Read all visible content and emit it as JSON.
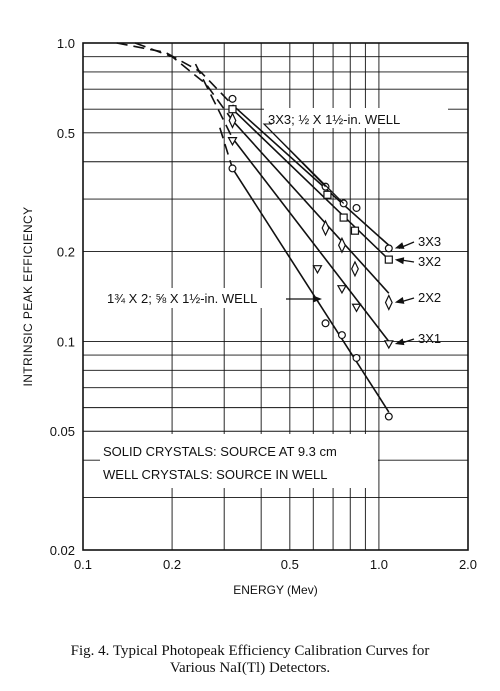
{
  "chart_data": {
    "type": "line",
    "scale": {
      "x": "log",
      "y": "log"
    },
    "xlim": [
      0.1,
      2.0
    ],
    "ylim": [
      0.02,
      1.0
    ],
    "xlabel": "ENERGY (Mev)",
    "ylabel": "INTRINSIC PEAK EFFICIENCY",
    "x_ticks": [
      {
        "value": 0.1,
        "label": "0.1"
      },
      {
        "value": 0.2,
        "label": "0.2"
      },
      {
        "value": 0.5,
        "label": "0.5"
      },
      {
        "value": 1.0,
        "label": "1.0"
      },
      {
        "value": 2.0,
        "label": "2.0"
      }
    ],
    "y_ticks": [
      {
        "value": 1.0,
        "label": "1.0"
      },
      {
        "value": 0.5,
        "label": "0.5"
      },
      {
        "value": 0.2,
        "label": "0.2"
      },
      {
        "value": 0.1,
        "label": "0.1"
      },
      {
        "value": 0.05,
        "label": "0.05"
      },
      {
        "value": 0.02,
        "label": "0.02"
      }
    ],
    "grid": true,
    "series": [
      {
        "name": "3X3",
        "marker": "circle",
        "line": [
          [
            0.32,
            0.62
          ],
          [
            1.08,
            0.21
          ]
        ],
        "dashed": [
          [
            0.13,
            1.0
          ],
          [
            0.19,
            0.93
          ],
          [
            0.25,
            0.8
          ],
          [
            0.32,
            0.62
          ]
        ],
        "points": [
          [
            0.32,
            0.65
          ],
          [
            0.66,
            0.33
          ],
          [
            0.76,
            0.29
          ],
          [
            0.84,
            0.28
          ],
          [
            1.08,
            0.205
          ]
        ]
      },
      {
        "name": "3X2",
        "marker": "square",
        "line": [
          [
            0.32,
            0.6
          ],
          [
            1.08,
            0.188
          ]
        ],
        "dashed": [],
        "points": [
          [
            0.32,
            0.6
          ],
          [
            0.67,
            0.31
          ],
          [
            0.76,
            0.26
          ],
          [
            0.83,
            0.235
          ],
          [
            1.08,
            0.188
          ]
        ]
      },
      {
        "name": "2X2",
        "marker": "diamond",
        "line": [
          [
            0.32,
            0.55
          ],
          [
            1.08,
            0.145
          ]
        ],
        "dashed": [
          [
            0.15,
            1.0
          ],
          [
            0.2,
            0.9
          ],
          [
            0.26,
            0.73
          ],
          [
            0.32,
            0.55
          ]
        ],
        "points": [
          [
            0.32,
            0.55
          ],
          [
            0.66,
            0.24
          ],
          [
            0.75,
            0.21
          ],
          [
            0.83,
            0.175
          ],
          [
            1.08,
            0.135
          ]
        ]
      },
      {
        "name": "3X1",
        "marker": "triangle-down",
        "line": [
          [
            0.32,
            0.48
          ],
          [
            1.08,
            0.1
          ]
        ],
        "dashed": [
          [
            0.24,
            0.85
          ],
          [
            0.32,
            0.48
          ]
        ],
        "points": [
          [
            0.32,
            0.47
          ],
          [
            0.62,
            0.175
          ],
          [
            0.75,
            0.15
          ],
          [
            0.84,
            0.13
          ],
          [
            1.08,
            0.098
          ]
        ]
      },
      {
        "name": "1¾ X 2; ⅝ X 1½-in. WELL",
        "marker": "circle",
        "line": [
          [
            0.32,
            0.38
          ],
          [
            1.08,
            0.058
          ]
        ],
        "dashed": [
          [
            0.29,
            0.52
          ],
          [
            0.32,
            0.38
          ]
        ],
        "points": [
          [
            0.32,
            0.38
          ],
          [
            0.66,
            0.115
          ],
          [
            0.75,
            0.105
          ],
          [
            0.84,
            0.088
          ],
          [
            1.08,
            0.056
          ]
        ]
      }
    ],
    "series_labels": [
      {
        "series": 0,
        "text": "3X3"
      },
      {
        "series": 1,
        "text": "3X2"
      },
      {
        "series": 2,
        "text": "2X2"
      },
      {
        "series": 3,
        "text": "3X1"
      },
      {
        "series": 4,
        "text": "1¾ X 2; ⅝ X 1½-in. WELL"
      }
    ],
    "annotations": [
      "3X3; ½ X 1½-in. WELL",
      "SOLID CRYSTALS: SOURCE AT 9.3 cm",
      "WELL CRYSTALS: SOURCE IN WELL"
    ]
  },
  "caption": {
    "line1": "Fig. 4.   Typical Photopeak Efficiency Calibration Curves for",
    "line2": "Various NaI(Tl) Detectors."
  }
}
